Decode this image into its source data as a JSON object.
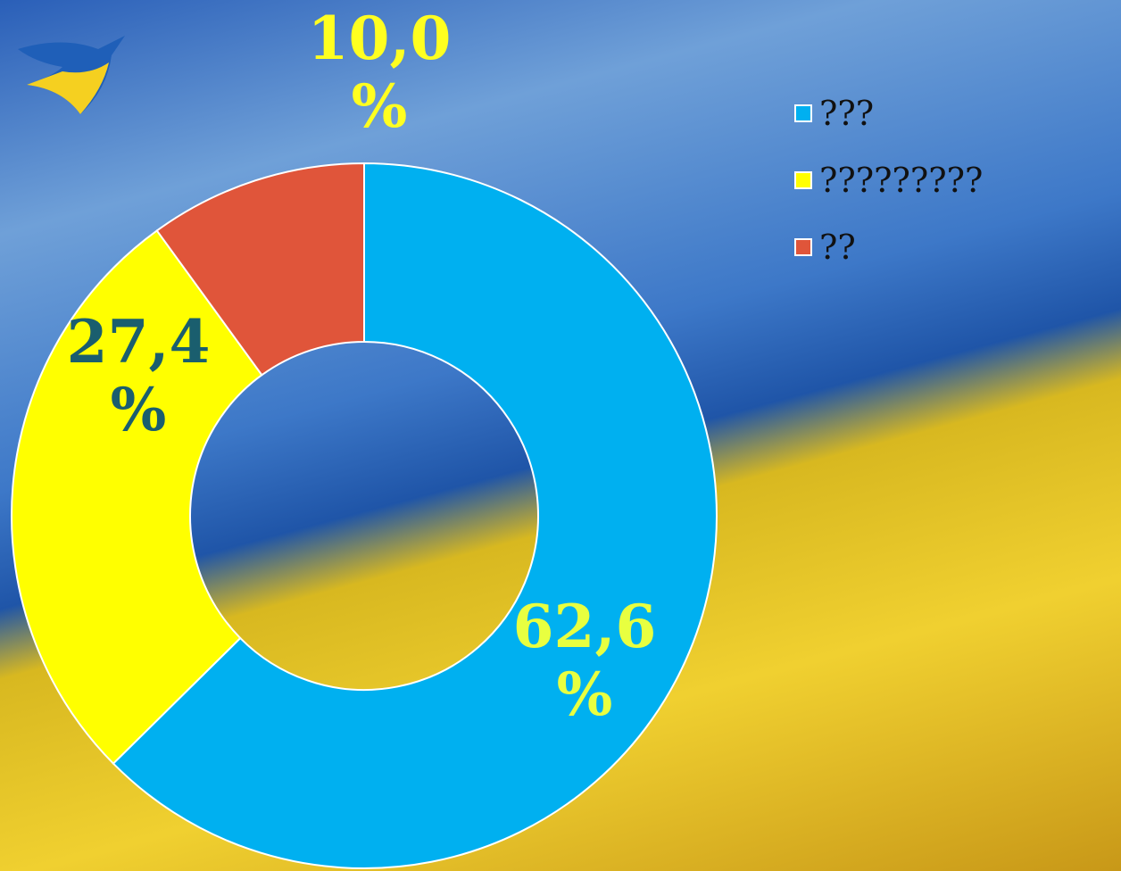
{
  "chart_data": {
    "type": "donut",
    "categories": [
      "???",
      "?????????",
      "??"
    ],
    "values": [
      62.6,
      27.4,
      10.0
    ],
    "value_labels": [
      "62,6 %",
      "27,4 %",
      "10,0 %"
    ],
    "colors": [
      "#00b0f0",
      "#ffff00",
      "#e0553a"
    ],
    "legend": "top-right"
  }
}
